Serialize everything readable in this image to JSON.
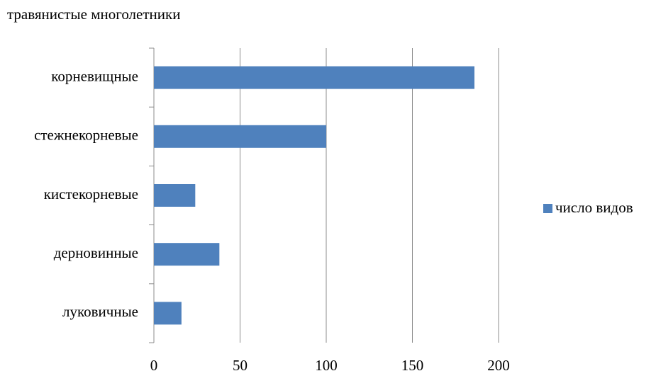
{
  "chart_data": {
    "type": "barh",
    "title": "травянистые многолетники",
    "categories": [
      "корневищные",
      "стежнекорневые",
      "кистекорневые",
      "дерновинные",
      "луковичные"
    ],
    "series": [
      {
        "name": "число видов",
        "color": "#4f81bd",
        "values": [
          186,
          100,
          24,
          38,
          16
        ]
      }
    ],
    "xlim": [
      0,
      200
    ],
    "xticks": [
      0,
      50,
      100,
      150,
      200
    ],
    "grid": true,
    "legend": "right"
  }
}
